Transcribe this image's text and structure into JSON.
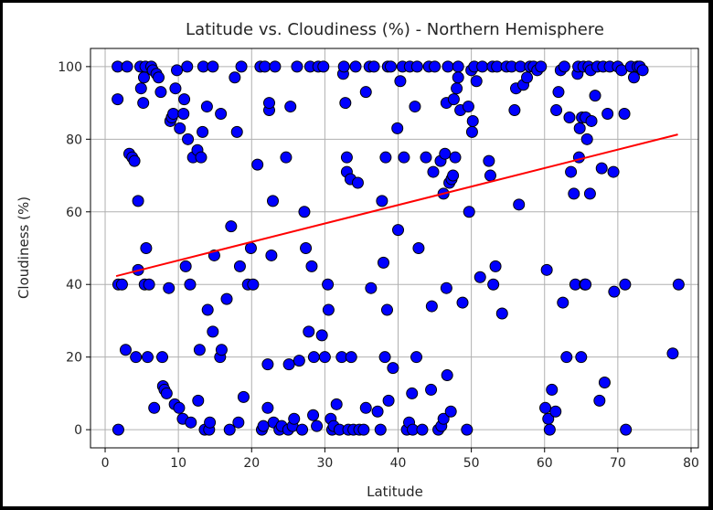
{
  "chart_data": {
    "type": "scatter",
    "title": "Latitude vs. Cloudiness (%) - Northern Hemisphere",
    "xlabel": "Latitude",
    "ylabel": "Cloudiness (%)",
    "xlim": [
      -2,
      81
    ],
    "ylim": [
      -5,
      105
    ],
    "xticks": [
      0,
      10,
      20,
      30,
      40,
      50,
      60,
      70,
      80
    ],
    "yticks": [
      0,
      20,
      40,
      60,
      80,
      100
    ],
    "grid": true,
    "marker_color": "#0000ff",
    "marker_edge": "#000000",
    "line_color": "#ff0000",
    "regression": {
      "x": [
        1.5,
        78.2
      ],
      "y": [
        42.3,
        81.3
      ]
    },
    "points": [
      [
        1.7,
        100
      ],
      [
        1.7,
        91
      ],
      [
        1.8,
        40
      ],
      [
        2.3,
        40
      ],
      [
        1.8,
        0
      ],
      [
        3.0,
        100
      ],
      [
        2.8,
        22
      ],
      [
        3.3,
        76
      ],
      [
        3.7,
        75
      ],
      [
        4.0,
        74
      ],
      [
        4.2,
        20
      ],
      [
        4.5,
        63
      ],
      [
        4.5,
        44
      ],
      [
        4.9,
        94
      ],
      [
        4.8,
        100
      ],
      [
        5.3,
        97
      ],
      [
        5.5,
        100
      ],
      [
        5.2,
        90
      ],
      [
        5.6,
        50
      ],
      [
        5.4,
        40
      ],
      [
        5.8,
        20
      ],
      [
        6.0,
        40
      ],
      [
        6.3,
        100
      ],
      [
        6.5,
        99
      ],
      [
        6.7,
        6
      ],
      [
        7.0,
        98
      ],
      [
        7.3,
        97
      ],
      [
        7.6,
        93
      ],
      [
        7.8,
        20
      ],
      [
        7.9,
        12
      ],
      [
        8.1,
        11
      ],
      [
        8.4,
        10
      ],
      [
        8.7,
        39
      ],
      [
        8.9,
        85
      ],
      [
        9.1,
        86
      ],
      [
        9.3,
        87
      ],
      [
        9.6,
        94
      ],
      [
        9.8,
        99
      ],
      [
        9.5,
        7
      ],
      [
        10.1,
        6
      ],
      [
        10.2,
        83
      ],
      [
        10.6,
        3
      ],
      [
        10.7,
        87
      ],
      [
        10.8,
        91
      ],
      [
        11.0,
        45
      ],
      [
        11.2,
        100
      ],
      [
        11.3,
        80
      ],
      [
        11.6,
        40
      ],
      [
        11.7,
        2
      ],
      [
        12.0,
        75
      ],
      [
        12.6,
        77
      ],
      [
        12.9,
        22
      ],
      [
        12.7,
        8
      ],
      [
        13.1,
        75
      ],
      [
        13.3,
        82
      ],
      [
        13.6,
        0
      ],
      [
        13.4,
        100
      ],
      [
        13.9,
        89
      ],
      [
        14.0,
        33
      ],
      [
        14.2,
        0
      ],
      [
        14.3,
        2
      ],
      [
        14.7,
        100
      ],
      [
        14.9,
        48
      ],
      [
        14.7,
        27
      ],
      [
        15.7,
        20
      ],
      [
        15.9,
        22
      ],
      [
        15.8,
        87
      ],
      [
        16.6,
        36
      ],
      [
        17.0,
        0
      ],
      [
        17.2,
        56
      ],
      [
        17.7,
        97
      ],
      [
        18.0,
        82
      ],
      [
        18.2,
        2
      ],
      [
        18.4,
        45
      ],
      [
        18.6,
        100
      ],
      [
        18.9,
        9
      ],
      [
        19.5,
        40
      ],
      [
        19.9,
        50
      ],
      [
        20.2,
        40
      ],
      [
        20.8,
        73
      ],
      [
        21.2,
        100
      ],
      [
        21.4,
        0
      ],
      [
        21.6,
        1
      ],
      [
        21.8,
        100
      ],
      [
        22.2,
        6
      ],
      [
        22.2,
        18
      ],
      [
        22.4,
        88
      ],
      [
        22.4,
        90
      ],
      [
        22.7,
        48
      ],
      [
        22.9,
        63
      ],
      [
        23.0,
        2
      ],
      [
        23.2,
        100
      ],
      [
        23.8,
        0
      ],
      [
        24.1,
        1
      ],
      [
        24.7,
        75
      ],
      [
        25.0,
        0
      ],
      [
        25.1,
        18
      ],
      [
        25.3,
        89
      ],
      [
        25.6,
        1
      ],
      [
        25.8,
        3
      ],
      [
        26.2,
        100
      ],
      [
        26.5,
        19
      ],
      [
        26.9,
        0
      ],
      [
        27.2,
        60
      ],
      [
        27.4,
        50
      ],
      [
        27.8,
        27
      ],
      [
        28.0,
        100
      ],
      [
        28.2,
        45
      ],
      [
        28.4,
        4
      ],
      [
        28.5,
        20
      ],
      [
        28.9,
        1
      ],
      [
        29.1,
        100
      ],
      [
        29.6,
        26
      ],
      [
        29.8,
        100
      ],
      [
        30.0,
        20
      ],
      [
        30.4,
        40
      ],
      [
        30.5,
        33
      ],
      [
        30.8,
        3
      ],
      [
        31.0,
        0
      ],
      [
        31.2,
        1
      ],
      [
        31.6,
        7
      ],
      [
        32.0,
        0
      ],
      [
        32.3,
        20
      ],
      [
        32.5,
        98
      ],
      [
        32.6,
        100
      ],
      [
        32.8,
        90
      ],
      [
        33.0,
        75
      ],
      [
        33.0,
        71
      ],
      [
        33.2,
        0
      ],
      [
        33.5,
        69
      ],
      [
        33.6,
        20
      ],
      [
        33.9,
        0
      ],
      [
        34.2,
        100
      ],
      [
        34.5,
        68
      ],
      [
        34.7,
        0
      ],
      [
        35.3,
        0
      ],
      [
        35.6,
        93
      ],
      [
        35.6,
        6
      ],
      [
        36.1,
        100
      ],
      [
        36.3,
        39
      ],
      [
        36.7,
        100
      ],
      [
        37.2,
        5
      ],
      [
        37.6,
        0
      ],
      [
        37.8,
        63
      ],
      [
        38.0,
        46
      ],
      [
        38.3,
        75
      ],
      [
        38.2,
        20
      ],
      [
        38.5,
        33
      ],
      [
        38.6,
        100
      ],
      [
        38.7,
        8
      ],
      [
        39.0,
        100
      ],
      [
        39.3,
        17
      ],
      [
        39.9,
        83
      ],
      [
        40.0,
        55
      ],
      [
        40.3,
        96
      ],
      [
        40.6,
        100
      ],
      [
        40.8,
        75
      ],
      [
        41.2,
        0
      ],
      [
        41.5,
        2
      ],
      [
        41.6,
        100
      ],
      [
        41.9,
        10
      ],
      [
        42.0,
        0
      ],
      [
        42.3,
        89
      ],
      [
        42.5,
        20
      ],
      [
        42.8,
        50
      ],
      [
        42.6,
        100
      ],
      [
        43.3,
        0
      ],
      [
        43.8,
        75
      ],
      [
        44.2,
        100
      ],
      [
        44.5,
        11
      ],
      [
        44.6,
        34
      ],
      [
        44.8,
        71
      ],
      [
        45.0,
        100
      ],
      [
        45.5,
        0
      ],
      [
        45.8,
        74
      ],
      [
        45.9,
        1
      ],
      [
        46.2,
        3
      ],
      [
        46.2,
        65
      ],
      [
        46.4,
        76
      ],
      [
        46.6,
        90
      ],
      [
        46.6,
        39
      ],
      [
        46.7,
        15
      ],
      [
        46.8,
        100
      ],
      [
        47.0,
        68
      ],
      [
        47.2,
        5
      ],
      [
        47.3,
        69
      ],
      [
        47.5,
        70
      ],
      [
        47.6,
        91
      ],
      [
        47.8,
        75
      ],
      [
        48.0,
        94
      ],
      [
        48.2,
        100
      ],
      [
        48.2,
        97
      ],
      [
        48.5,
        88
      ],
      [
        48.8,
        35
      ],
      [
        49.4,
        0
      ],
      [
        49.6,
        89
      ],
      [
        49.7,
        60
      ],
      [
        50.0,
        99
      ],
      [
        50.1,
        82
      ],
      [
        50.2,
        85
      ],
      [
        50.4,
        100
      ],
      [
        50.7,
        96
      ],
      [
        51.2,
        42
      ],
      [
        51.5,
        100
      ],
      [
        52.4,
        74
      ],
      [
        52.6,
        70
      ],
      [
        52.9,
        100
      ],
      [
        53.0,
        40
      ],
      [
        53.3,
        45
      ],
      [
        53.5,
        100
      ],
      [
        54.2,
        32
      ],
      [
        54.8,
        100
      ],
      [
        55.5,
        100
      ],
      [
        55.9,
        88
      ],
      [
        56.1,
        94
      ],
      [
        56.5,
        62
      ],
      [
        56.7,
        100
      ],
      [
        57.1,
        95
      ],
      [
        57.6,
        97
      ],
      [
        58.0,
        100
      ],
      [
        58.5,
        100
      ],
      [
        59.0,
        99
      ],
      [
        59.5,
        100
      ],
      [
        60.1,
        6
      ],
      [
        60.3,
        44
      ],
      [
        60.5,
        3
      ],
      [
        60.7,
        0
      ],
      [
        61.0,
        11
      ],
      [
        61.5,
        5
      ],
      [
        61.6,
        88
      ],
      [
        61.9,
        93
      ],
      [
        62.2,
        99
      ],
      [
        62.5,
        35
      ],
      [
        62.7,
        100
      ],
      [
        63.0,
        20
      ],
      [
        63.4,
        86
      ],
      [
        63.6,
        71
      ],
      [
        64.0,
        65
      ],
      [
        64.2,
        40
      ],
      [
        64.5,
        98
      ],
      [
        64.6,
        100
      ],
      [
        64.8,
        83
      ],
      [
        64.7,
        75
      ],
      [
        65.0,
        20
      ],
      [
        65.1,
        86
      ],
      [
        65.3,
        100
      ],
      [
        65.5,
        40
      ],
      [
        65.6,
        86
      ],
      [
        65.6,
        40
      ],
      [
        65.8,
        80
      ],
      [
        66.0,
        100
      ],
      [
        66.2,
        65
      ],
      [
        66.3,
        99
      ],
      [
        66.4,
        85
      ],
      [
        66.9,
        92
      ],
      [
        67.2,
        100
      ],
      [
        67.5,
        8
      ],
      [
        67.8,
        72
      ],
      [
        68.0,
        100
      ],
      [
        68.2,
        13
      ],
      [
        68.6,
        87
      ],
      [
        68.9,
        100
      ],
      [
        69.4,
        71
      ],
      [
        69.5,
        38
      ],
      [
        70.0,
        100
      ],
      [
        70.5,
        99
      ],
      [
        70.9,
        87
      ],
      [
        71.0,
        40
      ],
      [
        71.1,
        0
      ],
      [
        71.8,
        100
      ],
      [
        72.2,
        97
      ],
      [
        72.7,
        100
      ],
      [
        73.0,
        100
      ],
      [
        73.4,
        99
      ],
      [
        77.5,
        21
      ],
      [
        78.3,
        40
      ]
    ]
  }
}
